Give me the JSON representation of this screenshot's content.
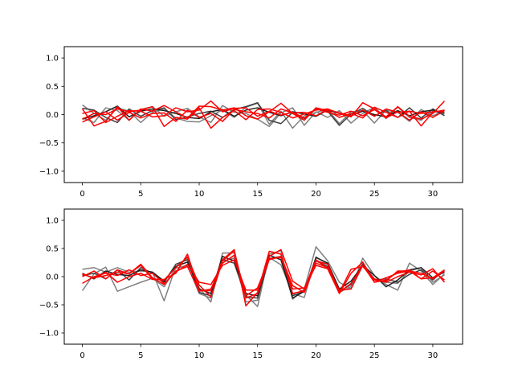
{
  "chart_data": [
    {
      "type": "line",
      "xlim": [
        -1.55,
        32.55
      ],
      "ylim": [
        -1.2,
        1.2
      ],
      "xticks": [
        0,
        5,
        10,
        15,
        20,
        25,
        30
      ],
      "xtick_labels": [
        "0",
        "5",
        "10",
        "15",
        "20",
        "25",
        "30"
      ],
      "yticks": [
        1.0,
        0.5,
        0.0,
        -0.5,
        -1.0
      ],
      "ytick_labels": [
        "1.0",
        "0.5",
        "0.0",
        "−0.5",
        "−1.0"
      ],
      "grid": false,
      "x": [
        0,
        1,
        2,
        3,
        4,
        5,
        6,
        7,
        8,
        9,
        10,
        11,
        12,
        13,
        14,
        15,
        16,
        17,
        18,
        19,
        20,
        21,
        22,
        23,
        24,
        25,
        26,
        27,
        28,
        29,
        30,
        31
      ],
      "series": [
        {
          "color": "#808080",
          "values": [
            0.17,
            0.02,
            -0.1,
            0.12,
            0.06,
            -0.14,
            0.04,
            0.1,
            -0.06,
            -0.12,
            -0.13,
            -0.02,
            0.08,
            -0.05,
            0.13,
            0.2,
            -0.17,
            0.06,
            -0.24,
            -0.02,
            0.04,
            0.09,
            -0.16,
            0.05,
            0.07,
            -0.15,
            0.08,
            0.04,
            -0.12,
            0.09,
            -0.02,
            0.07
          ]
        },
        {
          "color": "#808080",
          "values": [
            -0.06,
            -0.14,
            0.12,
            0.07,
            -0.1,
            0.09,
            0.14,
            -0.03,
            0.05,
            0.11,
            -0.04,
            -0.14,
            0.16,
            0.04,
            0.02,
            -0.08,
            -0.21,
            0.03,
            0.12,
            -0.19,
            0.05,
            -0.05,
            0.07,
            -0.15,
            0.02,
            0.13,
            -0.07,
            0.13,
            -0.05,
            -0.1,
            0.06,
            0.01
          ]
        },
        {
          "color": "#404040",
          "values": [
            0.11,
            0.08,
            -0.05,
            -0.14,
            0.1,
            -0.03,
            0.07,
            0.12,
            -0.09,
            -0.04,
            0.02,
            0.06,
            -0.05,
            0.09,
            0.14,
            0.21,
            -0.1,
            -0.16,
            0.04,
            -0.07,
            0.1,
            0.06,
            -0.19,
            0.01,
            0.11,
            -0.02,
            0.07,
            -0.05,
            0.12,
            -0.06,
            0.1,
            -0.02
          ]
        },
        {
          "color": "#202020",
          "values": [
            -0.08,
            -0.02,
            0.05,
            0.15,
            -0.04,
            0.06,
            0.1,
            0.07,
            0.02,
            -0.05,
            -0.07,
            0.05,
            0.09,
            -0.03,
            0.08,
            0.12,
            0.04,
            -0.02,
            0.05,
            0.01,
            -0.03,
            0.08,
            0.02,
            -0.02,
            0.06,
            0.0,
            -0.04,
            0.07,
            -0.02,
            0.05,
            0.08,
            0.03
          ]
        },
        {
          "color": "#ff0000",
          "values": [
            -0.08,
            0.02,
            0.0,
            0.1,
            0.05,
            0.08,
            0.14,
            -0.21,
            -0.05,
            -0.08,
            0.12,
            -0.24,
            -0.05,
            0.07,
            -0.09,
            0.09,
            0.1,
            0.04,
            -0.06,
            0.01,
            0.08,
            0.1,
            0.02,
            -0.04,
            0.21,
            0.1,
            -0.04,
            0.14,
            -0.03,
            -0.08,
            0.02,
            0.24
          ]
        },
        {
          "color": "#ff0000",
          "values": [
            0.1,
            -0.2,
            -0.12,
            0.14,
            -0.1,
            0.1,
            0.06,
            0.16,
            0.05,
            -0.06,
            0.15,
            0.14,
            0.08,
            0.12,
            -0.02,
            -0.08,
            0.05,
            0.2,
            0.02,
            -0.1,
            0.12,
            0.07,
            -0.05,
            0.02,
            -0.06,
            0.13,
            0.04,
            -0.05,
            0.06,
            -0.2,
            0.04,
            0.08
          ]
        },
        {
          "color": "#ff0000",
          "values": [
            0.02,
            0.07,
            -0.14,
            -0.03,
            0.07,
            0.06,
            -0.04,
            -0.02,
            0.12,
            0.05,
            0.08,
            0.24,
            0.05,
            0.11,
            0.12,
            -0.03,
            0.06,
            -0.01,
            0.04,
            -0.06,
            0.1,
            0.04,
            -0.01,
            0.06,
            -0.02,
            0.09,
            -0.06,
            0.05,
            -0.1,
            0.05,
            -0.05,
            0.07
          ]
        },
        {
          "color": "#ff0000",
          "values": [
            -0.13,
            -0.04,
            0.05,
            -0.1,
            0.04,
            -0.06,
            0.02,
            0.03,
            -0.12,
            0.08,
            -0.05,
            0.02,
            -0.12,
            0.09,
            0.05,
            0.02,
            -0.06,
            0.1,
            0.03,
            0.04,
            -0.02,
            0.09,
            0.03,
            -0.02,
            0.08,
            -0.03,
            0.1,
            0.04,
            0.06,
            0.02,
            0.05,
            0.07
          ]
        }
      ]
    },
    {
      "type": "line",
      "xlim": [
        -1.55,
        32.55
      ],
      "ylim": [
        -1.2,
        1.2
      ],
      "xticks": [
        0,
        5,
        10,
        15,
        20,
        25,
        30
      ],
      "xtick_labels": [
        "0",
        "5",
        "10",
        "15",
        "20",
        "25",
        "30"
      ],
      "yticks": [
        1.0,
        0.5,
        0.0,
        -0.5,
        -1.0
      ],
      "ytick_labels": [
        "1.0",
        "0.5",
        "0.0",
        "−0.5",
        "−1.0"
      ],
      "grid": false,
      "x": [
        0,
        1,
        2,
        3,
        4,
        5,
        6,
        7,
        8,
        9,
        10,
        11,
        12,
        13,
        14,
        15,
        16,
        17,
        18,
        19,
        20,
        21,
        22,
        23,
        24,
        25,
        26,
        27,
        28,
        29,
        30,
        31
      ],
      "series": [
        {
          "color": "#808080",
          "values": [
            0.13,
            0.16,
            0.08,
            0.16,
            0.08,
            0.1,
            0.08,
            -0.43,
            0.18,
            0.33,
            -0.2,
            -0.45,
            0.42,
            0.42,
            -0.33,
            -0.53,
            0.4,
            0.46,
            -0.4,
            -0.22,
            0.53,
            0.28,
            -0.1,
            -0.22,
            0.33,
            0.02,
            -0.14,
            -0.24,
            0.24,
            0.1,
            -0.14,
            0.05
          ]
        },
        {
          "color": "#808080",
          "values": [
            -0.25,
            0.05,
            0.17,
            -0.26,
            -0.18,
            -0.1,
            -0.03,
            -0.18,
            0.15,
            0.2,
            -0.3,
            -0.38,
            0.28,
            0.33,
            -0.45,
            -0.42,
            0.34,
            0.21,
            -0.3,
            -0.37,
            0.35,
            0.22,
            -0.28,
            -0.18,
            0.24,
            -0.04,
            -0.1,
            -0.12,
            0.1,
            0.16,
            -0.1,
            0.03
          ]
        },
        {
          "color": "#404040",
          "values": [
            0.02,
            0.06,
            -0.04,
            0.12,
            -0.06,
            0.16,
            0.06,
            -0.1,
            0.22,
            0.3,
            -0.28,
            -0.34,
            0.3,
            0.24,
            -0.36,
            -0.38,
            0.32,
            0.36,
            -0.34,
            -0.26,
            0.28,
            0.18,
            -0.26,
            -0.14,
            0.22,
            -0.06,
            -0.04,
            -0.1,
            0.04,
            0.12,
            -0.06,
            0.12
          ]
        },
        {
          "color": "#202020",
          "values": [
            0.06,
            -0.04,
            0.1,
            0.04,
            0.02,
            0.12,
            0.08,
            -0.08,
            0.18,
            0.26,
            -0.22,
            -0.3,
            0.36,
            0.28,
            -0.3,
            -0.34,
            0.38,
            0.3,
            -0.38,
            -0.26,
            0.34,
            0.24,
            -0.22,
            -0.08,
            0.2,
            0.02,
            -0.18,
            -0.06,
            0.12,
            0.16,
            -0.02,
            0.08
          ]
        },
        {
          "color": "#ff0000",
          "values": [
            0.05,
            -0.03,
            0.08,
            -0.1,
            0.0,
            0.06,
            -0.05,
            -0.05,
            0.06,
            0.4,
            -0.25,
            -0.25,
            0.3,
            0.48,
            -0.52,
            -0.28,
            0.45,
            0.4,
            -0.3,
            -0.25,
            0.28,
            0.22,
            -0.28,
            0.13,
            0.18,
            -0.04,
            -0.1,
            0.0,
            0.08,
            0.03,
            0.14,
            -0.1
          ]
        },
        {
          "color": "#ff0000",
          "values": [
            0.0,
            0.1,
            -0.04,
            0.12,
            0.05,
            0.2,
            -0.04,
            -0.06,
            0.16,
            0.35,
            -0.15,
            -0.36,
            0.28,
            0.46,
            -0.38,
            -0.3,
            0.36,
            0.48,
            -0.08,
            -0.22,
            0.3,
            0.14,
            -0.3,
            0.06,
            0.26,
            -0.1,
            -0.06,
            0.08,
            0.12,
            -0.04,
            0.1,
            -0.06
          ]
        },
        {
          "color": "#ff0000",
          "values": [
            -0.12,
            0.0,
            0.06,
            0.02,
            0.12,
            0.02,
            0.06,
            -0.12,
            0.08,
            0.22,
            -0.1,
            -0.14,
            0.2,
            0.3,
            -0.24,
            -0.24,
            0.3,
            0.36,
            -0.16,
            -0.28,
            0.24,
            0.16,
            -0.24,
            -0.22,
            0.2,
            -0.1,
            -0.02,
            0.06,
            0.1,
            -0.04,
            -0.02,
            0.12
          ]
        },
        {
          "color": "#ff0000",
          "values": [
            0.04,
            -0.02,
            0.02,
            0.08,
            0.05,
            0.22,
            -0.02,
            -0.14,
            0.1,
            0.18,
            -0.26,
            -0.22,
            0.24,
            0.38,
            -0.34,
            -0.2,
            0.32,
            0.34,
            -0.22,
            -0.2,
            0.2,
            0.14,
            -0.28,
            -0.12,
            0.2,
            -0.06,
            -0.08,
            0.1,
            0.1,
            0.06,
            -0.04,
            0.1
          ]
        }
      ]
    }
  ]
}
